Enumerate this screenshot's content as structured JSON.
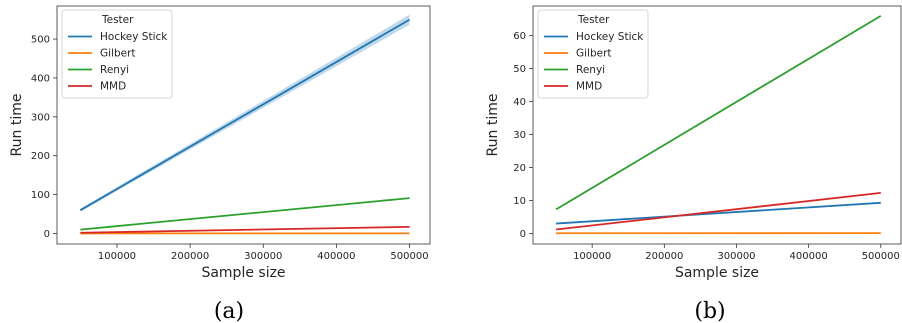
{
  "chart_data": [
    {
      "type": "line",
      "caption": "(a)",
      "xlabel": "Sample size",
      "ylabel": "Run time",
      "xlim": [
        18000,
        528000
      ],
      "ylim": [
        -27,
        585
      ],
      "xticks": [
        100000,
        200000,
        300000,
        400000,
        500000
      ],
      "yticks": [
        0,
        100,
        200,
        300,
        400,
        500
      ],
      "legend": {
        "title": "Tester",
        "placement": "top-left"
      },
      "x": [
        50000,
        500000
      ],
      "series": [
        {
          "name": "Hockey Stick",
          "color": "#1f77b4",
          "values": [
            60,
            550
          ],
          "band": [
            [
              56,
              64
            ],
            [
              537,
              563
            ]
          ]
        },
        {
          "name": "Gilbert",
          "color": "#ff7f0e",
          "values": [
            0.2,
            0.4
          ]
        },
        {
          "name": "Renyi",
          "color": "#2ca02c",
          "values": [
            10,
            91
          ]
        },
        {
          "name": "MMD",
          "color": "#d62728",
          "values": [
            2,
            17
          ]
        }
      ]
    },
    {
      "type": "line",
      "caption": "(b)",
      "xlabel": "Sample size",
      "ylabel": "Run time",
      "xlim": [
        18000,
        528000
      ],
      "ylim": [
        -3.2,
        69
      ],
      "xticks": [
        100000,
        200000,
        300000,
        400000,
        500000
      ],
      "yticks": [
        0,
        10,
        20,
        30,
        40,
        50,
        60
      ],
      "legend": {
        "title": "Tester",
        "placement": "top-left"
      },
      "x": [
        50000,
        500000
      ],
      "series": [
        {
          "name": "Hockey Stick",
          "color": "#1f77b4",
          "values": [
            3,
            9.3
          ]
        },
        {
          "name": "Gilbert",
          "color": "#ff7f0e",
          "values": [
            0.05,
            0.1
          ]
        },
        {
          "name": "Renyi",
          "color": "#2ca02c",
          "values": [
            7.3,
            66
          ]
        },
        {
          "name": "MMD",
          "color": "#d62728",
          "values": [
            1.2,
            12.3
          ]
        }
      ]
    }
  ]
}
